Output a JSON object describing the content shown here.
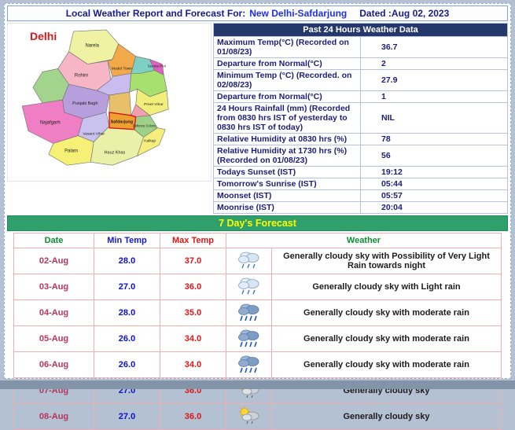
{
  "header": {
    "title_prefix": "Local Weather Report and Forecast For:",
    "location": "New Delhi-Safdarjung",
    "dated": "Dated :Aug 02, 2023"
  },
  "map": {
    "title": "Delhi",
    "labels": [
      "Narela",
      "Rohini",
      "Model Town",
      "Seema Puri",
      "Punjabi Bagh",
      "Preet Vihar",
      "Najafgarh",
      "Palam",
      "Vasant Vihar",
      "Safdarjung",
      "Defence Colony",
      "Hauz Khas",
      "Kalkaji"
    ]
  },
  "past24": {
    "band": "Past 24 Hours Weather Data",
    "rows": [
      {
        "label": "Maximum Temp(°C) (Recorded on 01/08/23)",
        "value": "36.7"
      },
      {
        "label": "Departure from Normal(°C)",
        "value": "2"
      },
      {
        "label": "Minimum Temp (°C) (Recorded. on 02/08/23)",
        "value": "27.9"
      },
      {
        "label": "Departure from Normal(°C)",
        "value": "1"
      },
      {
        "label": "24 Hours Rainfall (mm) (Recorded from 0830 hrs IST of yesterday to 0830 hrs IST of today)",
        "value": "NIL"
      },
      {
        "label": "Relative Humidity at 0830 hrs (%)",
        "value": "78"
      },
      {
        "label": "Relative Humidity at 1730 hrs (%) (Recorded on 01/08/23)",
        "value": "56"
      },
      {
        "label": "Todays Sunset (IST)",
        "value": "19:12"
      },
      {
        "label": "Tomorrow's Sunrise (IST)",
        "value": "05:44"
      },
      {
        "label": "Moonset (IST)",
        "value": "05:57"
      },
      {
        "label": "Moonrise (IST)",
        "value": "20:04"
      }
    ]
  },
  "forecast": {
    "band": "7 Day's Forecast",
    "columns": {
      "date": "Date",
      "min": "Min Temp",
      "max": "Max Temp",
      "weather": "Weather"
    },
    "rows": [
      {
        "date": "02-Aug",
        "min": "28.0",
        "max": "37.0",
        "icon": "cloud-light-rain",
        "weather": "Generally cloudy sky with Possibility of Very Light Rain towards night"
      },
      {
        "date": "03-Aug",
        "min": "27.0",
        "max": "36.0",
        "icon": "cloud-light-rain",
        "weather": "Generally cloudy sky with Light rain"
      },
      {
        "date": "04-Aug",
        "min": "28.0",
        "max": "35.0",
        "icon": "cloud-moderate-rain",
        "weather": "Generally cloudy sky with moderate rain"
      },
      {
        "date": "05-Aug",
        "min": "26.0",
        "max": "34.0",
        "icon": "cloud-moderate-rain",
        "weather": "Generally cloudy sky with moderate rain"
      },
      {
        "date": "06-Aug",
        "min": "26.0",
        "max": "34.0",
        "icon": "cloud-moderate-rain",
        "weather": "Generally cloudy sky with moderate rain"
      },
      {
        "date": "07-Aug",
        "min": "27.0",
        "max": "36.0",
        "icon": "sun-cloud",
        "weather": "Generally cloudy sky"
      },
      {
        "date": "08-Aug",
        "min": "27.0",
        "max": "36.0",
        "icon": "sun-cloud",
        "weather": "Generally cloudy sky"
      }
    ]
  },
  "colors": {
    "navy_text": "#1a1a8c",
    "band_blue": "#24386b",
    "band_green": "#2fa06c",
    "band_yellow_text": "#ffff00",
    "date_red": "#b5365a",
    "min_blue": "#0f0fd0",
    "max_red": "#e01515",
    "map_highlight_border": "#d01818"
  }
}
